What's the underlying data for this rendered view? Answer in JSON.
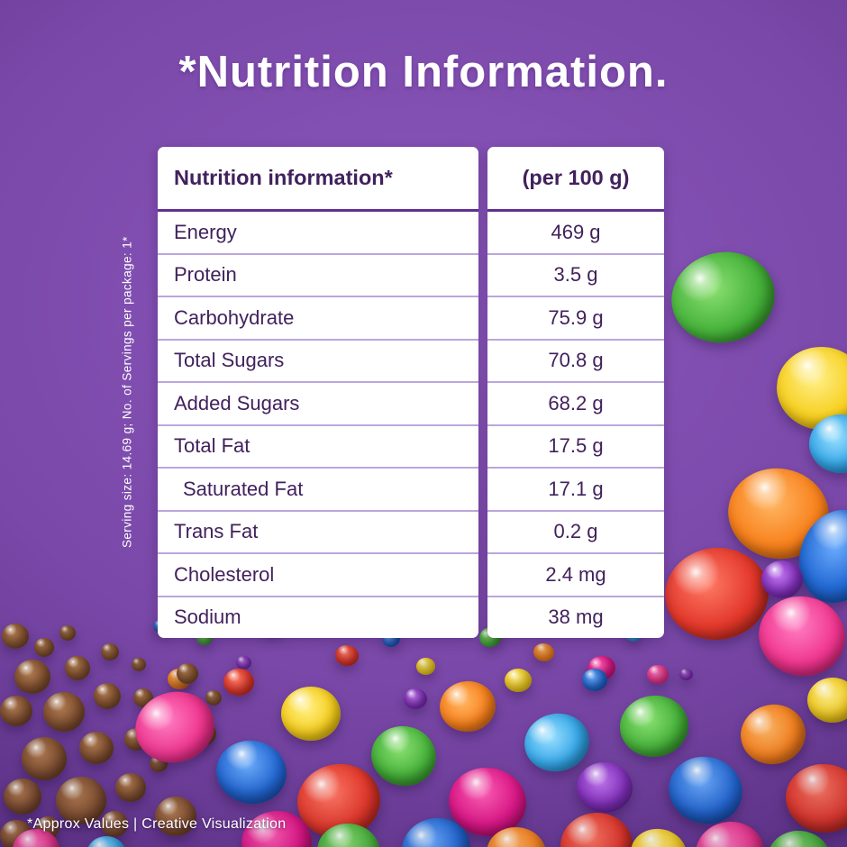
{
  "title": "*Nutrition Information.",
  "table": {
    "header": {
      "col1": "Nutrition information*",
      "col2": "(per 100 g)"
    },
    "rows": [
      {
        "label": "Energy",
        "value": "469 g"
      },
      {
        "label": "Protein",
        "value": "3.5 g"
      },
      {
        "label": "Carbohydrate",
        "value": "75.9 g"
      },
      {
        "label": "Total Sugars",
        "value": "70.8 g"
      },
      {
        "label": "Added Sugars",
        "value": "68.2 g"
      },
      {
        "label": "Total Fat",
        "value": "17.5 g"
      },
      {
        "label": "Saturated Fat",
        "value": "17.1 g"
      },
      {
        "label": "Trans Fat",
        "value": "0.2 g"
      },
      {
        "label": "Cholesterol",
        "value": "2.4 mg"
      },
      {
        "label": "Sodium",
        "value": "38 mg"
      }
    ]
  },
  "serving_note": "Serving size: 14.69 g; No. of Servings per package: 1*",
  "footer_note": "*Approx Values | Creative Visualization",
  "colors": {
    "background": "#7A48A8",
    "panel": "#FFFFFF",
    "text": "#41215C",
    "row_divider": "#BCA6DB",
    "header_rule": "#5F3090"
  }
}
